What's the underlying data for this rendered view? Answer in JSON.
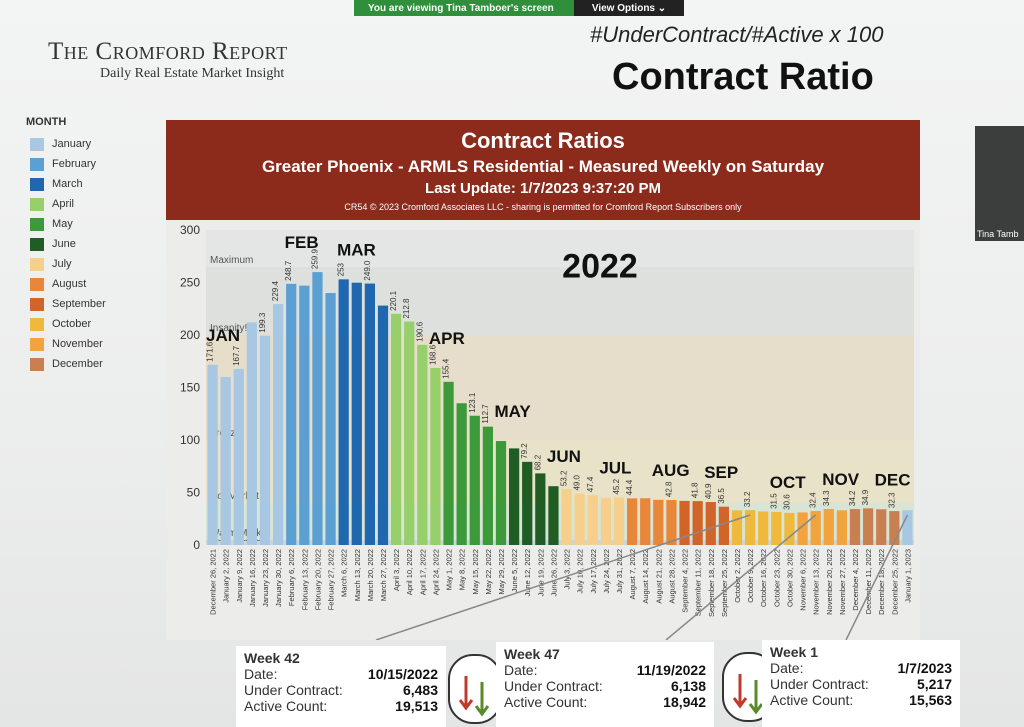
{
  "zoom": {
    "viewing": "You are viewing Tina Tamboer's screen",
    "options": "View Options"
  },
  "header": {
    "logo_title": "The Cromford Report",
    "logo_subtitle": "Daily Real Estate Market Insight",
    "formula": "#UnderContract/#Active x 100",
    "big_title": "Contract Ratio"
  },
  "legend": {
    "title": "MONTH",
    "items": [
      {
        "label": "January",
        "color": "#a7c7e3"
      },
      {
        "label": "February",
        "color": "#5c9fd3"
      },
      {
        "label": "March",
        "color": "#1f68b0"
      },
      {
        "label": "April",
        "color": "#97cf6b"
      },
      {
        "label": "May",
        "color": "#3d9a3a"
      },
      {
        "label": "June",
        "color": "#1f5d24"
      },
      {
        "label": "July",
        "color": "#f6cf8c"
      },
      {
        "label": "August",
        "color": "#e8873a"
      },
      {
        "label": "September",
        "color": "#d2642a"
      },
      {
        "label": "October",
        "color": "#eeb93d"
      },
      {
        "label": "November",
        "color": "#f1a33e"
      },
      {
        "label": "December",
        "color": "#c98051"
      }
    ]
  },
  "banner": {
    "title": "Contract Ratios",
    "subtitle": "Greater Phoenix - ARMLS Residential - Measured Weekly on Saturday",
    "update": "Last Update: 1/7/2023 9:37:20 PM",
    "copyright": "CR54 © 2023 Cromford Associates LLC - sharing is permitted for Cromford Report Subscribers only"
  },
  "video": {
    "name": "Tina Tamb"
  },
  "chart_data": {
    "type": "bar",
    "ylim": [
      0,
      300
    ],
    "yticks": [
      0,
      50,
      100,
      150,
      200,
      250,
      300
    ],
    "year_label": "2022",
    "zones": [
      {
        "label": "Cool Market",
        "from": 0,
        "to": 5,
        "color": "#c7d7df"
      },
      {
        "label": "Warm Market",
        "from": 5,
        "to": 40,
        "color": "#d8e4d4"
      },
      {
        "label": "Hot Market",
        "from": 40,
        "to": 100,
        "color": "#e8e2c8"
      },
      {
        "label": "Frenzy!",
        "from": 100,
        "to": 200,
        "color": "#e6ddca"
      },
      {
        "label": "Insanity!",
        "from": 200,
        "to": 265,
        "color": "#dde0dc"
      },
      {
        "label": "Maximum",
        "from": 265,
        "to": 300,
        "color": "#e4e6e5"
      }
    ],
    "month_labels": [
      {
        "text": "JAN",
        "index": 0
      },
      {
        "text": "FEB",
        "index": 6
      },
      {
        "text": "MAR",
        "index": 10
      },
      {
        "text": "APR",
        "index": 17
      },
      {
        "text": "MAY",
        "index": 22
      },
      {
        "text": "JUN",
        "index": 26
      },
      {
        "text": "JUL",
        "index": 30
      },
      {
        "text": "AUG",
        "index": 34
      },
      {
        "text": "SEP",
        "index": 38
      },
      {
        "text": "OCT",
        "index": 43
      },
      {
        "text": "NOV",
        "index": 47
      },
      {
        "text": "DEC",
        "index": 51
      }
    ],
    "categories": [
      "December 26, 2021",
      "January 2, 2022",
      "January 9, 2022",
      "January 16, 2022",
      "January 23, 2022",
      "January 30, 2022",
      "February 6, 2022",
      "February 13, 2022",
      "February 20, 2022",
      "February 27, 2022",
      "March 6, 2022",
      "March 13, 2022",
      "March 20, 2022",
      "March 27, 2022",
      "April 3, 2022",
      "April 10, 2022",
      "April 17, 2022",
      "April 24, 2022",
      "May 1, 2022",
      "May 8, 2022",
      "May 15, 2022",
      "May 22, 2022",
      "May 29, 2022",
      "June 5, 2022",
      "June 12, 2022",
      "June 19, 2022",
      "June 26, 2022",
      "July 3, 2022",
      "July 10, 2022",
      "July 17, 2022",
      "July 24, 2022",
      "July 31, 2022",
      "August 7, 2022",
      "August 14, 2022",
      "August 21, 2022",
      "August 28, 2022",
      "September 4, 2022",
      "September 11, 2022",
      "September 18, 2022",
      "September 25, 2022",
      "October 2, 2022",
      "October 9, 2022",
      "October 16, 2022",
      "October 23, 2022",
      "October 30, 2022",
      "November 6, 2022",
      "November 13, 2022",
      "November 20, 2022",
      "November 27, 2022",
      "December 4, 2022",
      "December 11, 2022",
      "December 18, 2022",
      "December 25, 2022",
      "January 1, 2023"
    ],
    "values": [
      171.6,
      160,
      167.7,
      212,
      199.3,
      229.4,
      248.7,
      247,
      259.9,
      240,
      253,
      249.8,
      249.0,
      228,
      220.1,
      212.8,
      190.6,
      168.6,
      155.4,
      135,
      123.1,
      112.7,
      99,
      92,
      79.2,
      68.2,
      56,
      53.2,
      49.0,
      47.4,
      45,
      45.2,
      44.4,
      44.5,
      43,
      42.8,
      42,
      41.8,
      40.9,
      36.5,
      33,
      33.2,
      32,
      31.5,
      30.6,
      31,
      32.4,
      34.3,
      33,
      34.2,
      34.9,
      34,
      32.3,
      33
    ],
    "labels": [
      "171.6",
      "",
      "167.7",
      "",
      "199.3",
      "229.4",
      "248.7",
      "",
      "259.9",
      "",
      "253",
      "",
      "249.0",
      "",
      "220.1",
      "212.8",
      "190.6",
      "168.6",
      "155.4",
      "",
      "123.1",
      "112.7",
      "",
      "",
      "79.2",
      "68.2",
      "",
      "53.2",
      "49.0",
      "47.4",
      "",
      "45.2",
      "44.4",
      "",
      "",
      "42.8",
      "",
      "41.8",
      "40.9",
      "36.5",
      "",
      "33.2",
      "",
      "31.5",
      "30.6",
      "",
      "32.4",
      "34.3",
      "",
      "34.2",
      "34.9",
      "",
      "32.3",
      ""
    ],
    "colors": [
      "#a7c7e3",
      "#a7c7e3",
      "#a7c7e3",
      "#a7c7e3",
      "#a7c7e3",
      "#a7c7e3",
      "#5c9fd3",
      "#5c9fd3",
      "#5c9fd3",
      "#5c9fd3",
      "#1f68b0",
      "#1f68b0",
      "#1f68b0",
      "#1f68b0",
      "#97cf6b",
      "#97cf6b",
      "#97cf6b",
      "#97cf6b",
      "#3d9a3a",
      "#3d9a3a",
      "#3d9a3a",
      "#3d9a3a",
      "#3d9a3a",
      "#1f5d24",
      "#1f5d24",
      "#1f5d24",
      "#1f5d24",
      "#f6cf8c",
      "#f6cf8c",
      "#f6cf8c",
      "#f6cf8c",
      "#f6cf8c",
      "#e8873a",
      "#e8873a",
      "#e8873a",
      "#e8873a",
      "#d2642a",
      "#d2642a",
      "#d2642a",
      "#d2642a",
      "#eeb93d",
      "#eeb93d",
      "#eeb93d",
      "#eeb93d",
      "#eeb93d",
      "#f1a33e",
      "#f1a33e",
      "#f1a33e",
      "#f1a33e",
      "#c98051",
      "#c98051",
      "#c98051",
      "#c98051",
      "#a7c7e3"
    ]
  },
  "weeks": [
    {
      "title": "Week 42",
      "date_label": "Date:",
      "date": "10/15/2022",
      "uc_label": "Under Contract:",
      "uc": "6,483",
      "ac_label": "Active Count:",
      "ac": "19,513"
    },
    {
      "title": "Week 47",
      "date_label": "Date:",
      "date": "11/19/2022",
      "uc_label": "Under Contract:",
      "uc": "6,138",
      "ac_label": "Active Count:",
      "ac": "18,942"
    },
    {
      "title": "Week 1",
      "date_label": "Date:",
      "date": "1/7/2023",
      "uc_label": "Under Contract:",
      "uc": "5,217",
      "ac_label": "Active Count:",
      "ac": "15,563"
    }
  ]
}
